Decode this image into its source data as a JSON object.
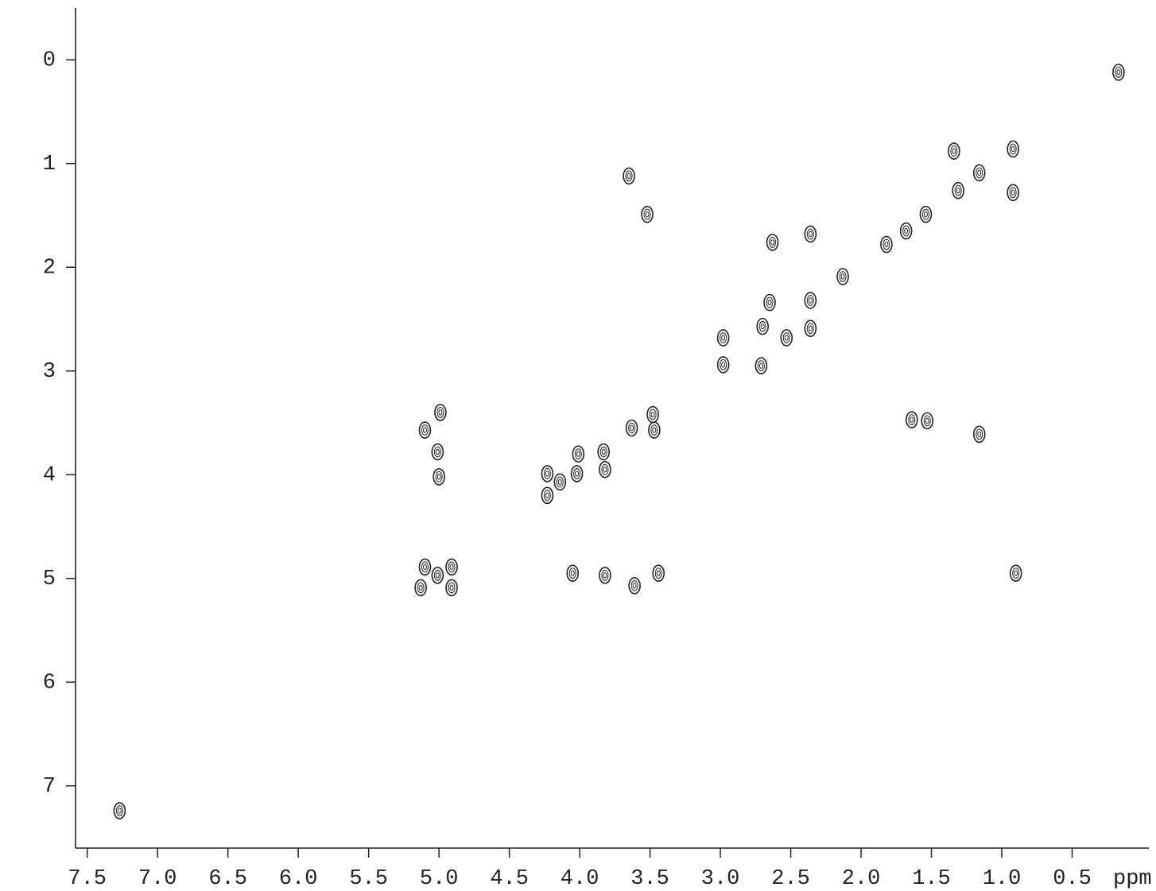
{
  "chart_data": {
    "type": "scatter",
    "x_label": "ppm",
    "xlim": [
      7.6,
      0.0
    ],
    "ylim": [
      -0.5,
      7.6
    ],
    "xticks": [
      7.5,
      {
        "value": 7,
        "label": "7.0"
      },
      6.5,
      {
        "value": 6,
        "label": "6.0"
      },
      5.5,
      {
        "value": 5,
        "label": "5.0"
      },
      4.5,
      {
        "value": 4,
        "label": "4.0"
      },
      3.5,
      {
        "value": 3,
        "label": "3.0"
      },
      2.5,
      {
        "value": 2,
        "label": "2.0"
      },
      1.5,
      {
        "value": 1,
        "label": "1.0"
      },
      0.5
    ],
    "yticks": [
      0,
      1,
      2,
      3,
      4,
      5,
      6,
      7
    ],
    "color": "#222222",
    "x": [
      0.17,
      0.92,
      0.92,
      1.16,
      1.34,
      1.31,
      1.54,
      1.68,
      1.82,
      2.13,
      2.36,
      2.63,
      2.36,
      2.36,
      2.65,
      2.7,
      2.53,
      2.98,
      2.98,
      2.71,
      3.65,
      3.52,
      3.48,
      3.63,
      3.47,
      3.83,
      3.82,
      4.01,
      4.02,
      4.14,
      4.23,
      4.23,
      4.05,
      3.82,
      3.61,
      3.44,
      5.1,
      4.99,
      5.01,
      5.0,
      5.1,
      4.91,
      5.13,
      4.91,
      5.01,
      1.53,
      1.64,
      1.16,
      0.9,
      7.27
    ],
    "values": [
      0.12,
      0.86,
      1.28,
      1.09,
      0.88,
      1.26,
      1.49,
      1.65,
      1.78,
      2.09,
      1.68,
      1.76,
      2.32,
      2.59,
      2.34,
      2.57,
      2.68,
      2.68,
      2.94,
      2.95,
      1.12,
      1.49,
      3.42,
      3.55,
      3.57,
      3.78,
      3.95,
      3.8,
      3.99,
      4.07,
      3.99,
      4.2,
      4.95,
      4.97,
      5.07,
      4.95,
      3.57,
      3.4,
      3.78,
      4.02,
      4.89,
      4.89,
      5.09,
      5.09,
      4.97,
      3.48,
      3.47,
      3.61,
      4.95,
      7.24
    ]
  }
}
